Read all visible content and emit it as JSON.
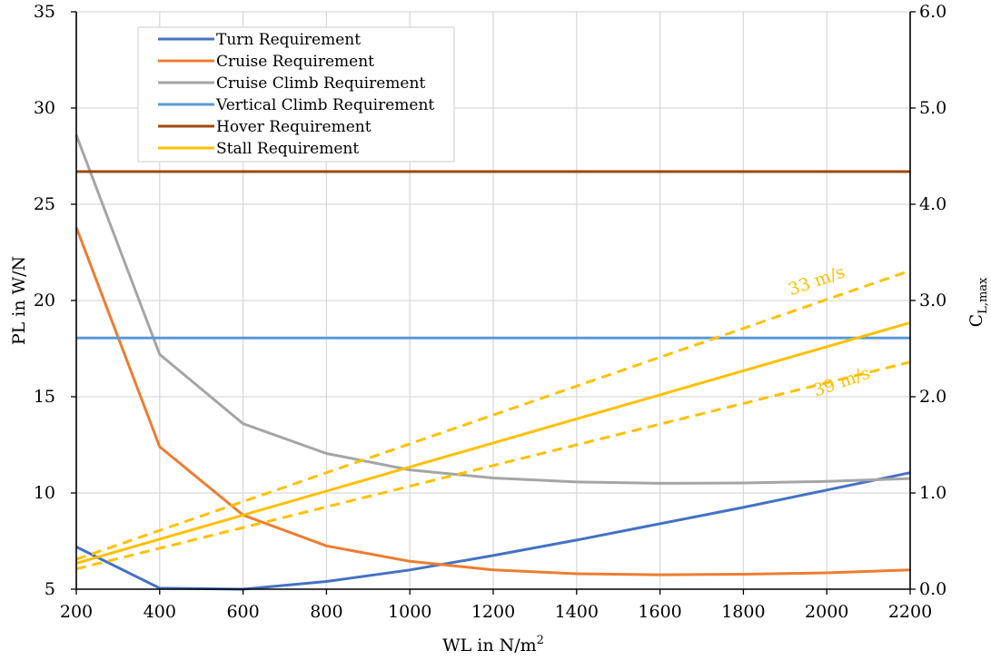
{
  "chart_data": {
    "type": "line",
    "xlabel": "WL in N/m",
    "xlabel_sup": "2",
    "ylabel": "PL in W/N",
    "y2label": "C",
    "y2label_sub": "L,max",
    "xlim": [
      200,
      2200
    ],
    "ylim": [
      5,
      35
    ],
    "y2lim": [
      0.0,
      6.0
    ],
    "x_ticks": [
      200,
      400,
      600,
      800,
      1000,
      1200,
      1400,
      1600,
      1800,
      2000,
      2200
    ],
    "y_ticks": [
      5,
      10,
      15,
      20,
      25,
      30,
      35
    ],
    "y2_ticks": [
      "0.0",
      "1.0",
      "2.0",
      "3.0",
      "4.0",
      "5.0",
      "6.0"
    ],
    "grid": true,
    "legend_position": "top-left",
    "series": [
      {
        "name": "Turn Requirement",
        "color": "#4472C4",
        "axis": "left",
        "style": "solid",
        "x": [
          200,
          400,
          600,
          800,
          1000,
          1200,
          1400,
          1600,
          1800,
          2000,
          2200
        ],
        "y": [
          7.2,
          5.05,
          5.0,
          5.4,
          6.0,
          6.75,
          7.55,
          8.4,
          9.25,
          10.15,
          11.05
        ]
      },
      {
        "name": "Cruise Requirement",
        "color": "#ED7D31",
        "axis": "left",
        "style": "solid",
        "x": [
          200,
          400,
          600,
          800,
          1000,
          1200,
          1400,
          1600,
          1800,
          2000,
          2200
        ],
        "y": [
          23.8,
          12.4,
          8.85,
          7.25,
          6.45,
          6.0,
          5.8,
          5.75,
          5.78,
          5.85,
          6.0
        ]
      },
      {
        "name": "Cruise Climb Requirement",
        "color": "#A5A5A5",
        "axis": "left",
        "style": "solid",
        "x": [
          200,
          400,
          600,
          800,
          1000,
          1200,
          1400,
          1600,
          1800,
          2000,
          2200
        ],
        "y": [
          28.6,
          17.2,
          13.6,
          12.05,
          11.2,
          10.78,
          10.57,
          10.5,
          10.52,
          10.6,
          10.75
        ]
      },
      {
        "name": "Vertical Climb Requirement",
        "color": "#5B9BD5",
        "axis": "left",
        "style": "solid",
        "x": [
          200,
          2200
        ],
        "y": [
          18.05,
          18.05
        ]
      },
      {
        "name": "Hover Requirement",
        "color": "#9E480E",
        "axis": "left",
        "style": "solid",
        "x": [
          200,
          2200
        ],
        "y": [
          26.7,
          26.7
        ]
      },
      {
        "name": "Stall Requirement",
        "color": "#FFC000",
        "axis": "right",
        "style": "solid",
        "x": [
          200,
          2200
        ],
        "y": [
          0.27,
          2.77
        ]
      },
      {
        "color": "#FFC000",
        "axis": "right",
        "style": "dashed",
        "x": [
          200,
          2200
        ],
        "y": [
          0.31,
          3.31
        ]
      },
      {
        "color": "#FFC000",
        "axis": "right",
        "style": "dashed",
        "x": [
          200,
          2200
        ],
        "y": [
          0.21,
          2.36
        ]
      }
    ],
    "annotations": [
      {
        "text": "33 m/s",
        "color": "#FFC000",
        "x": 1980,
        "y2": 3.15
      },
      {
        "text": "39 m/s",
        "color": "#FFC000",
        "x": 2040,
        "y2": 2.1
      }
    ]
  }
}
